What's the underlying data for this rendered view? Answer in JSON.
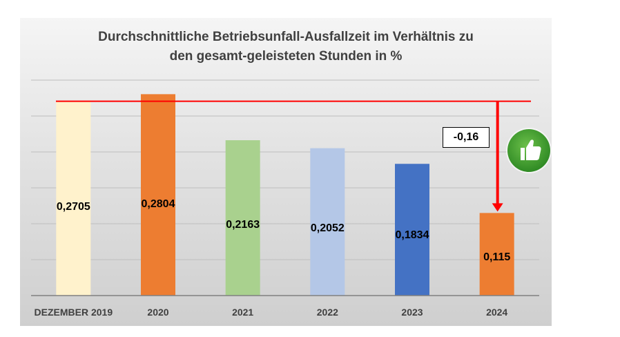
{
  "chart_data": {
    "type": "bar",
    "title_lines": [
      "Durchschnittliche Betriebsunfall-Ausfallzeit im Verhältnis zu",
      "den gesamt-geleisteten Stunden in %"
    ],
    "categories": [
      "DEZEMBER 2019",
      "2020",
      "2021",
      "2022",
      "2023",
      "2024"
    ],
    "values": [
      0.2705,
      0.2804,
      0.2163,
      0.2052,
      0.1834,
      0.115
    ],
    "value_labels": [
      "0,2705",
      "0,2804",
      "0,2163",
      "0,2052",
      "0,1834",
      "0,115"
    ],
    "bar_colors": [
      "#fff2cc",
      "#ed7d31",
      "#a9d18e",
      "#b4c7e7",
      "#4472c4",
      "#ed7d31"
    ],
    "reference_line": {
      "value": 0.2705,
      "color": "#ff0000"
    },
    "annotation": {
      "label": "-0,16",
      "arrow_color": "#ff0000",
      "icon": "thumbs-up-icon",
      "icon_color": "#3e9e2f"
    },
    "ylim": [
      0,
      0.3
    ],
    "gridlines": true,
    "legend": "none",
    "xlabel": "",
    "ylabel": ""
  }
}
